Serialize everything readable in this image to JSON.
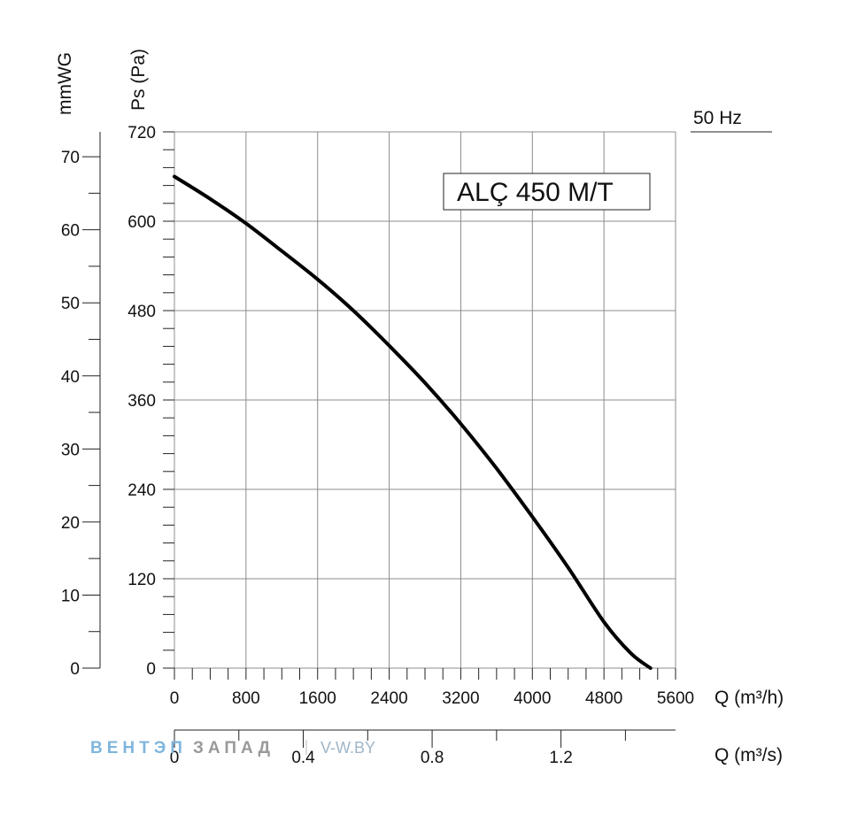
{
  "chart_data": {
    "type": "line",
    "title": "ALÇ 450 M/T",
    "frequency_label": "50 Hz",
    "y_left_label": "Ps (Pa)",
    "y_outer_label": "mmWG",
    "x_label": "Q (m³/h)",
    "x2_label": "Q (m³/s)",
    "x_ticks": [
      "0",
      "800",
      "1600",
      "2400",
      "3200",
      "4000",
      "4800",
      "5600"
    ],
    "y_ticks": [
      "0",
      "120",
      "240",
      "360",
      "480",
      "600",
      "720"
    ],
    "mmwg_ticks": [
      "0",
      "10",
      "20",
      "30",
      "40",
      "50",
      "60",
      "70"
    ],
    "x2_ticks": [
      "0",
      "0.4",
      "0.8",
      "1.2"
    ],
    "xlim": [
      0,
      5600
    ],
    "ylim": [
      0,
      720
    ],
    "mmwg_lim": [
      0,
      73.4
    ],
    "x2_lim": [
      0,
      1.5556
    ],
    "grid": true,
    "series": [
      {
        "x": [
          0,
          400,
          800,
          1200,
          1600,
          2000,
          2400,
          2800,
          3200,
          3600,
          4000,
          4400,
          4800,
          5100,
          5320
        ],
        "y": [
          660,
          630,
          597,
          560,
          522,
          480,
          433,
          383,
          328,
          268,
          203,
          135,
          62,
          20,
          0
        ]
      }
    ]
  },
  "watermark": {
    "part1": "ВЕНТЭП",
    "part2": "ЗАПАД",
    "site": "V-W.BY"
  },
  "colors": {
    "grid": "#8c8c8c",
    "curve": "#000000",
    "watermark_blue": "#7fb6dd",
    "watermark_gray": "#9a9a9a",
    "site_blue": "#9fb6c8"
  }
}
